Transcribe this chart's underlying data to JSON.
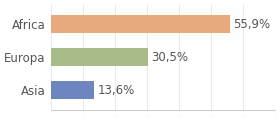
{
  "categories": [
    "Africa",
    "Europa",
    "Asia"
  ],
  "values": [
    55.9,
    30.5,
    13.6
  ],
  "labels": [
    "55,9%",
    "30,5%",
    "13,6%"
  ],
  "bar_colors": [
    "#e8a97e",
    "#a8bc8a",
    "#6e86c0"
  ],
  "background_color": "#ffffff",
  "xlim": [
    0,
    70
  ],
  "bar_height": 0.55,
  "label_fontsize": 8.5,
  "tick_fontsize": 8.5
}
